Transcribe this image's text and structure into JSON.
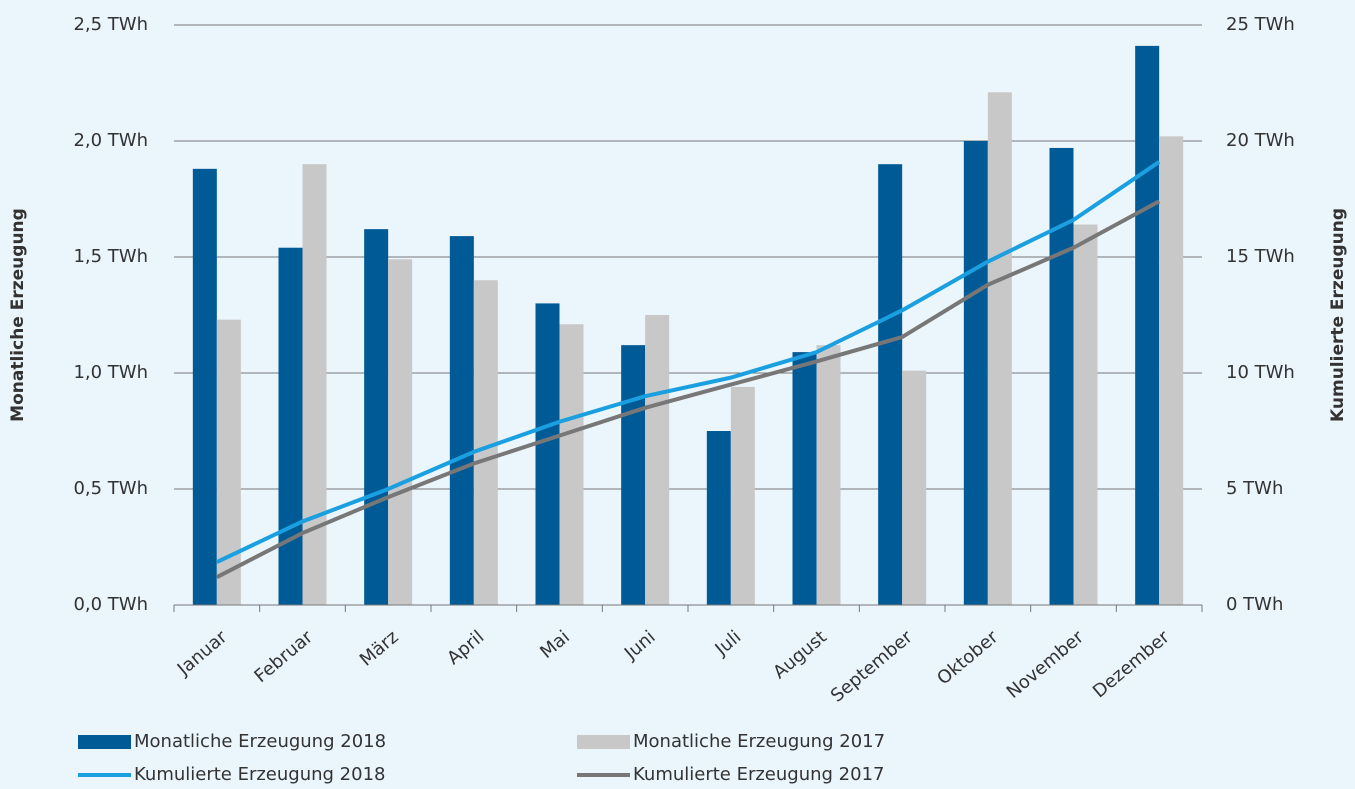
{
  "chart_data": {
    "type": "bar-line",
    "y_label": "Monatliche Erzeugung",
    "y2_label": "Kumulierte Erzeugung",
    "categories": [
      "Januar",
      "Februar",
      "März",
      "April",
      "Mai",
      "Juni",
      "Juli",
      "August",
      "September",
      "Oktober",
      "November",
      "Dezember"
    ],
    "series": [
      {
        "name": "Monatliche Erzeugung 2018",
        "type": "bar",
        "color": "#005a96",
        "values": [
          1.88,
          1.54,
          1.62,
          1.59,
          1.3,
          1.12,
          0.75,
          1.09,
          1.9,
          2.0,
          1.97,
          2.41
        ]
      },
      {
        "name": "Monatliche Erzeugung 2017",
        "type": "bar",
        "color": "#c8c8c8",
        "values": [
          1.23,
          1.9,
          1.49,
          1.4,
          1.21,
          1.25,
          0.94,
          1.12,
          1.01,
          2.21,
          1.64,
          2.02
        ]
      },
      {
        "name": "Kumulierte Erzeugung 2018",
        "type": "line",
        "axis": "y2",
        "color": "#1aa0e0",
        "values": [
          1.85,
          3.6,
          5.0,
          6.6,
          7.9,
          9.0,
          9.8,
          10.9,
          12.7,
          14.8,
          16.6,
          19.1
        ]
      },
      {
        "name": "Kumulierte Erzeugung 2017",
        "type": "line",
        "axis": "y2",
        "color": "#777777",
        "values": [
          1.2,
          3.1,
          4.65,
          6.1,
          7.3,
          8.5,
          9.5,
          10.5,
          11.55,
          13.8,
          15.4,
          17.4
        ]
      }
    ],
    "ylim": [
      0,
      2.5
    ],
    "yticks": [
      {
        "value": 0,
        "label": "0,0 TWh"
      },
      {
        "value": 0.5,
        "label": "0,5 TWh"
      },
      {
        "value": 1,
        "label": "1,0 TWh"
      },
      {
        "value": 1.5,
        "label": "1,5 TWh"
      },
      {
        "value": 2,
        "label": "2,0 TWh"
      },
      {
        "value": 2.5,
        "label": "2,5 TWh"
      }
    ],
    "y2lim": [
      0,
      25
    ],
    "y2ticks": [
      {
        "value": 0,
        "label": "0 TWh"
      },
      {
        "value": 5,
        "label": "5 TWh"
      },
      {
        "value": 10,
        "label": "10 TWh"
      },
      {
        "value": 15,
        "label": "15 TWh"
      },
      {
        "value": 20,
        "label": "20 TWh"
      },
      {
        "value": 25,
        "label": "25 TWh"
      }
    ],
    "grid": true
  }
}
